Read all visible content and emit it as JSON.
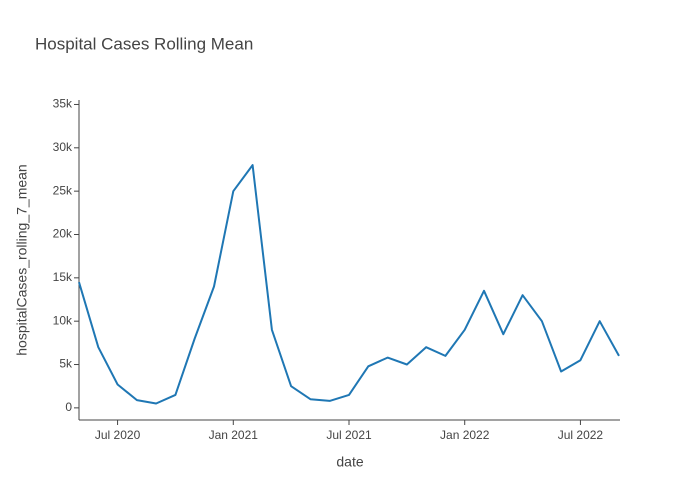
{
  "chart_data": {
    "type": "line",
    "title": "Hospital Cases Rolling Mean",
    "x_label": "date",
    "y_label": "hospitalCases_rolling_7_mean",
    "x": [
      "2020-05",
      "2020-06",
      "2020-07",
      "2020-08",
      "2020-09",
      "2020-10",
      "2020-11",
      "2020-12",
      "2021-01",
      "2021-02",
      "2021-03",
      "2021-04",
      "2021-05",
      "2021-06",
      "2021-07",
      "2021-08",
      "2021-09",
      "2021-10",
      "2021-11",
      "2021-12",
      "2022-01",
      "2022-02",
      "2022-03",
      "2022-04",
      "2022-05",
      "2022-06",
      "2022-07",
      "2022-08",
      "2022-09"
    ],
    "series": [
      {
        "name": "hospitalCases_rolling_7_mean",
        "color": "#1f77b4",
        "values": [
          14500,
          7000,
          2700,
          900,
          500,
          1500,
          8000,
          14000,
          25000,
          28000,
          9000,
          2500,
          1000,
          800,
          1500,
          4800,
          5800,
          5000,
          7000,
          6000,
          9000,
          13500,
          8500,
          13000,
          10000,
          4200,
          5500,
          10000,
          6000
        ]
      }
    ],
    "xlim": [
      "2020-05",
      "2022-09"
    ],
    "xticks": [
      {
        "value": "2020-07",
        "label": "Jul 2020"
      },
      {
        "value": "2021-01",
        "label": "Jan 2021"
      },
      {
        "value": "2021-07",
        "label": "Jul 2021"
      },
      {
        "value": "2022-01",
        "label": "Jan 2022"
      },
      {
        "value": "2022-07",
        "label": "Jul 2022"
      }
    ],
    "ylim": [
      -1400,
      35400
    ],
    "yticks": [
      0,
      {
        "value": 5000,
        "label": "5k"
      },
      {
        "value": 10000,
        "label": "10k"
      },
      {
        "value": 15000,
        "label": "15k"
      },
      {
        "value": 20000,
        "label": "20k"
      },
      {
        "value": 25000,
        "label": "25k"
      },
      {
        "value": 30000,
        "label": "30k"
      },
      {
        "value": 35000,
        "label": "35k"
      }
    ],
    "grid": false
  }
}
